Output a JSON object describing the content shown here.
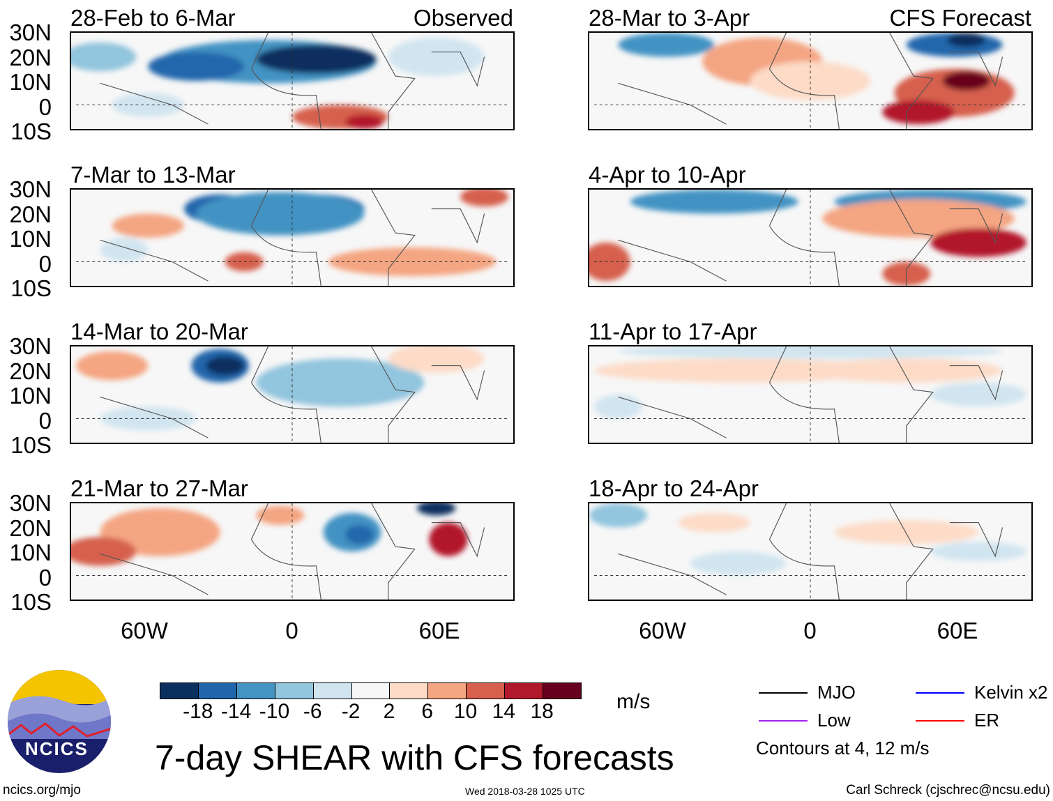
{
  "panels": [
    {
      "title": "28-Feb to 6-Mar",
      "label": "Observed"
    },
    {
      "title": "28-Mar to 3-Apr",
      "label": "CFS Forecast"
    },
    {
      "title": "7-Mar to 13-Mar",
      "label": ""
    },
    {
      "title": "4-Apr to 10-Apr",
      "label": ""
    },
    {
      "title": "14-Mar to 20-Mar",
      "label": ""
    },
    {
      "title": "11-Apr to 17-Apr",
      "label": ""
    },
    {
      "title": "21-Mar to 27-Mar",
      "label": ""
    },
    {
      "title": "18-Apr to 24-Apr",
      "label": ""
    }
  ],
  "lat_labels": [
    "30N",
    "20N",
    "10N",
    "0",
    "10S"
  ],
  "lon_labels": [
    "60W",
    "0",
    "60E"
  ],
  "colorbar": {
    "colors": [
      "#0b2f5e",
      "#2166ac",
      "#4393c3",
      "#92c5de",
      "#d1e5f0",
      "#f7f7f7",
      "#fddbc7",
      "#f4a582",
      "#d6604d",
      "#b2182b",
      "#67001f"
    ],
    "labels": [
      "-18",
      "-14",
      "-10",
      "-6",
      "-2",
      "2",
      "6",
      "10",
      "14",
      "18"
    ],
    "units": "m/s"
  },
  "legend": {
    "items": [
      {
        "label": "MJO",
        "color": "#000000"
      },
      {
        "label": "Kelvin x2",
        "color": "#0000ff"
      },
      {
        "label": "Low",
        "color": "#a020f0"
      },
      {
        "label": "ER",
        "color": "#ff0000"
      }
    ],
    "note": "Contours at 4, 12 m/s"
  },
  "main_title": "7-day SHEAR with CFS forecasts",
  "logo_text": "NCICS",
  "footer": {
    "left": "ncics.org/mjo",
    "center": "Wed 2018-03-28 1025 UTC",
    "right": "Carl Schreck (cjschrec@ncsu.edu)"
  }
}
